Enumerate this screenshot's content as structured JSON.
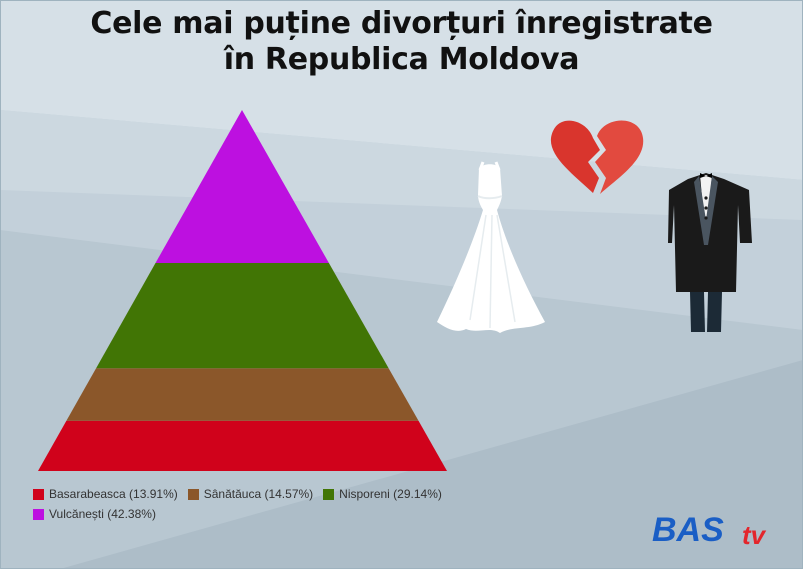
{
  "title": {
    "line1": "Cele mai puține divorțuri înregistrate",
    "line2": "în Republica Moldova"
  },
  "chart_data": {
    "type": "pyramid",
    "title": "Cele mai puține divorțuri înregistrate în Republica Moldova",
    "legend_position": "bottom-left",
    "series": [
      {
        "name": "Basarabeasca",
        "value": 13.91,
        "label": "Basarabeasca (13.91%)",
        "color": "#d0021b"
      },
      {
        "name": "Sânătăuca",
        "value": 14.57,
        "label": "Sânătăuca (14.57%)",
        "color": "#8b572a"
      },
      {
        "name": "Nisporeni",
        "value": 29.14,
        "label": "Nisporeni (29.14%)",
        "color": "#417505"
      },
      {
        "name": "Vulcănești",
        "value": 42.38,
        "label": "Vulcănești (42.38%)",
        "color": "#bd10e0"
      }
    ]
  },
  "icons": [
    "wedding-dress-icon",
    "broken-heart-icon",
    "tuxedo-icon"
  ],
  "logo": {
    "text_main": "BAS",
    "text_sub": "tv",
    "color_main": "#1a5ec5",
    "color_sub": "#e3262c"
  }
}
